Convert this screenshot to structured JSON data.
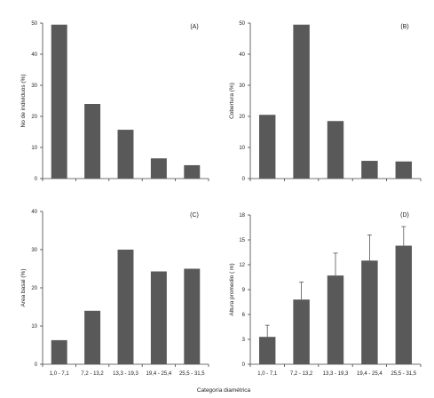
{
  "figure": {
    "xlabel": "Categoría  diamétrica"
  },
  "chart_data": [
    {
      "type": "bar",
      "panel": "(A)",
      "categories": [
        "1,0 - 7,1",
        "7,2 - 13,2",
        "13,3 - 19,3",
        "19,4 - 25,4",
        "25,5 - 31,5"
      ],
      "values": [
        49.5,
        24,
        15.7,
        6.5,
        4.3
      ],
      "ylabel": "No de individuos  (%)",
      "ylim": [
        0,
        50
      ],
      "yticks": [
        0,
        10,
        20,
        30,
        40,
        50
      ],
      "show_xticklabels": false
    },
    {
      "type": "bar",
      "panel": "(B)",
      "categories": [
        "1,0 - 7,1",
        "7,2 - 13,2",
        "13,3 - 19,3",
        "19,4 - 25,4",
        "25,5 - 31,5"
      ],
      "values": [
        20.5,
        49.5,
        18.5,
        5.7,
        5.5
      ],
      "ylabel": "Cobertura  (%)",
      "ylim": [
        0,
        50
      ],
      "yticks": [
        0,
        10,
        20,
        30,
        40,
        50
      ],
      "show_xticklabels": false
    },
    {
      "type": "bar",
      "panel": "(C)",
      "categories": [
        "1,0 - 7,1",
        "7,2 - 13,2",
        "13,3 - 19,3",
        "19,4 - 25,4",
        "25,5 - 31,5"
      ],
      "values": [
        6.3,
        14,
        30,
        24.3,
        25
      ],
      "ylabel": "Area basal (%)",
      "ylim": [
        0,
        40
      ],
      "yticks": [
        0,
        10,
        20,
        30,
        40
      ],
      "show_xticklabels": true
    },
    {
      "type": "bar",
      "panel": "(D)",
      "categories": [
        "1,0 - 7,1",
        "7,2 - 13,2",
        "13,3 - 19,3",
        "19,4 - 25,4",
        "25,5 - 31,5"
      ],
      "values": [
        3.3,
        7.8,
        10.7,
        12.5,
        14.3
      ],
      "errors": [
        1.4,
        2.1,
        2.7,
        3.1,
        2.3
      ],
      "ylabel": "Altura promedio  ( m)",
      "ylim": [
        0,
        18
      ],
      "yticks": [
        0,
        3,
        6,
        9,
        12,
        15,
        18
      ],
      "show_xticklabels": true
    }
  ]
}
